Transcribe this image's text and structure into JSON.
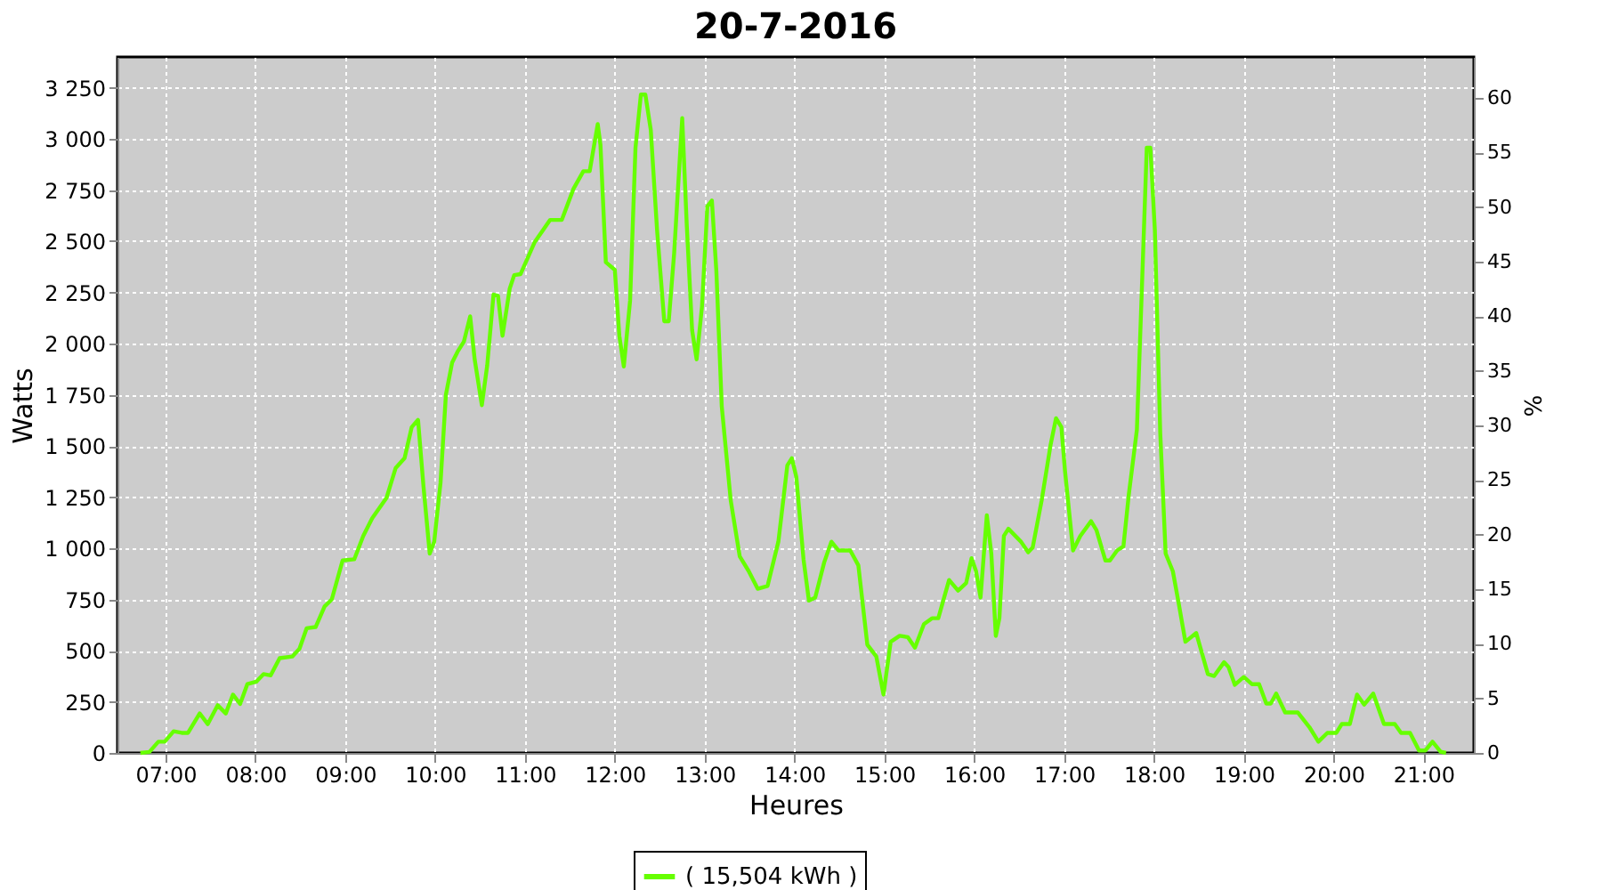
{
  "chart_data": {
    "type": "line",
    "title": "20-7-2016",
    "xlabel": "Heures",
    "ylabel": "Watts",
    "y2label": "%",
    "x": [
      6.72,
      6.82,
      6.92,
      6.99,
      7.09,
      7.18,
      7.25,
      7.38,
      7.47,
      7.58,
      7.67,
      7.75,
      7.83,
      7.91,
      8.01,
      8.09,
      8.17,
      8.27,
      8.41,
      8.49,
      8.57,
      8.67,
      8.77,
      8.85,
      8.97,
      9.1,
      9.2,
      9.3,
      9.46,
      9.56,
      9.66,
      9.74,
      9.81,
      9.87,
      9.94,
      9.99,
      10.06,
      10.12,
      10.19,
      10.25,
      10.32,
      10.39,
      10.44,
      10.52,
      10.58,
      10.65,
      10.7,
      10.75,
      10.83,
      10.88,
      10.95,
      11.11,
      11.28,
      11.41,
      11.54,
      11.65,
      11.72,
      11.81,
      11.84,
      11.9,
      12.0,
      12.05,
      12.1,
      12.17,
      12.23,
      12.29,
      12.34,
      12.4,
      12.47,
      12.55,
      12.6,
      12.66,
      12.75,
      12.8,
      12.86,
      12.91,
      12.97,
      13.03,
      13.08,
      13.13,
      13.19,
      13.29,
      13.39,
      13.49,
      13.59,
      13.7,
      13.82,
      13.92,
      13.97,
      14.02,
      14.1,
      14.16,
      14.23,
      14.33,
      14.41,
      14.49,
      14.62,
      14.71,
      14.81,
      14.91,
      14.99,
      15.07,
      15.17,
      15.26,
      15.34,
      15.44,
      15.53,
      15.6,
      15.72,
      15.82,
      15.91,
      15.97,
      16.02,
      16.07,
      16.14,
      16.19,
      16.24,
      16.28,
      16.33,
      16.38,
      16.52,
      16.6,
      16.65,
      16.75,
      16.85,
      16.91,
      16.97,
      17.01,
      17.1,
      17.18,
      17.3,
      17.36,
      17.46,
      17.51,
      17.59,
      17.66,
      17.72,
      17.81,
      17.87,
      17.92,
      17.96,
      18.01,
      18.07,
      18.13,
      18.21,
      18.27,
      18.35,
      18.47,
      18.6,
      18.67,
      18.78,
      18.83,
      18.9,
      19.0,
      19.09,
      19.17,
      19.25,
      19.3,
      19.36,
      19.46,
      19.6,
      19.73,
      19.83,
      19.93,
      20.03,
      20.09,
      20.18,
      20.26,
      20.34,
      20.44,
      20.56,
      20.68,
      20.75,
      20.85,
      20.95,
      21.02,
      21.1,
      21.19,
      21.25
    ],
    "series": [
      {
        "name": "( 15,504 kWh )",
        "color": "#66ff00",
        "values": [
          0,
          5,
          55,
          55,
          106,
          98,
          98,
          193,
          141,
          233,
          193,
          285,
          239,
          336,
          348,
          385,
          379,
          463,
          471,
          509,
          609,
          615,
          716,
          750,
          940,
          946,
          1060,
          1147,
          1247,
          1391,
          1440,
          1592,
          1627,
          1305,
          974,
          1032,
          1319,
          1750,
          1908,
          1960,
          2009,
          2133,
          1923,
          1699,
          1894,
          2239,
          2233,
          2038,
          2268,
          2334,
          2339,
          2497,
          2604,
          2604,
          2756,
          2842,
          2842,
          3072,
          2971,
          2397,
          2360,
          2038,
          1888,
          2210,
          2957,
          3216,
          3216,
          3044,
          2555,
          2109,
          2109,
          2440,
          3101,
          2584,
          2066,
          1923,
          2181,
          2670,
          2699,
          2354,
          1693,
          1233,
          960,
          888,
          802,
          816,
          1032,
          1405,
          1440,
          1348,
          946,
          744,
          759,
          931,
          1032,
          989,
          989,
          917,
          529,
          471,
          285,
          543,
          572,
          566,
          514,
          629,
          658,
          658,
          845,
          793,
          830,
          951,
          888,
          759,
          1161,
          974,
          572,
          658,
          1060,
          1095,
          1032,
          980,
          1003,
          1233,
          1506,
          1635,
          1592,
          1377,
          989,
          1060,
          1132,
          1089,
          940,
          940,
          989,
          1009,
          1262,
          1578,
          2325,
          2957,
          2957,
          2555,
          1563,
          974,
          888,
          744,
          543,
          586,
          385,
          376,
          443,
          420,
          333,
          371,
          336,
          336,
          241,
          241,
          290,
          198,
          198,
          126,
          55,
          98,
          98,
          141,
          141,
          285,
          236,
          290,
          141,
          141,
          98,
          98,
          12,
          12,
          55,
          6,
          0
        ]
      }
    ],
    "xlim": [
      6.465,
      21.56
    ],
    "xticks": [
      {
        "value": 7,
        "label": "07:00"
      },
      {
        "value": 8,
        "label": "08:00"
      },
      {
        "value": 9,
        "label": "09:00"
      },
      {
        "value": 10,
        "label": "10:00"
      },
      {
        "value": 11,
        "label": "11:00"
      },
      {
        "value": 12,
        "label": "12:00"
      },
      {
        "value": 13,
        "label": "13:00"
      },
      {
        "value": 14,
        "label": "14:00"
      },
      {
        "value": 15,
        "label": "15:00"
      },
      {
        "value": 16,
        "label": "16:00"
      },
      {
        "value": 17,
        "label": "17:00"
      },
      {
        "value": 18,
        "label": "18:00"
      },
      {
        "value": 19,
        "label": "19:00"
      },
      {
        "value": 20,
        "label": "20:00"
      },
      {
        "value": 21,
        "label": "21:00"
      }
    ],
    "ylim": [
      0,
      3400
    ],
    "yticks": [
      0,
      250,
      500,
      750,
      {
        "value": 1000,
        "label": "1 000"
      },
      {
        "value": 1250,
        "label": "1 250"
      },
      {
        "value": 1500,
        "label": "1 500"
      },
      {
        "value": 1750,
        "label": "1 750"
      },
      {
        "value": 2000,
        "label": "2 000"
      },
      {
        "value": 2250,
        "label": "2 250"
      },
      {
        "value": 2500,
        "label": "2 500"
      },
      {
        "value": 2750,
        "label": "2 750"
      },
      {
        "value": 3000,
        "label": "3 000"
      },
      {
        "value": 3250,
        "label": "3 250"
      }
    ],
    "y2lim": [
      0,
      63.75
    ],
    "y2ticks": [
      0,
      5,
      10,
      15,
      20,
      25,
      30,
      35,
      40,
      45,
      50,
      55,
      60
    ],
    "grid": true,
    "legend": "bottom",
    "marker": "none",
    "line_style": "solid"
  }
}
